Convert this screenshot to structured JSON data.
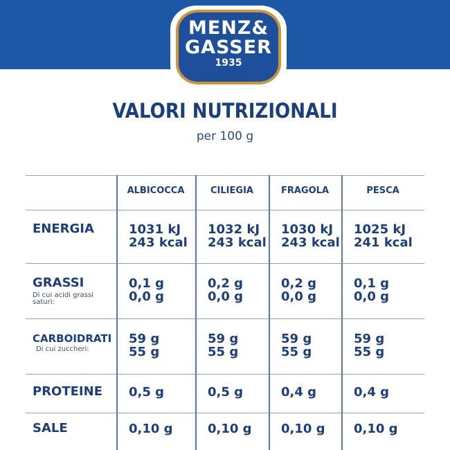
{
  "logo": {
    "line1": "MENZ&",
    "line2": "GASSER",
    "year": "1935"
  },
  "title": "VALORI NUTRIZIONALI",
  "subtitle": "per 100 g",
  "columns": [
    "ALBICOCCA",
    "CILIEGIA",
    "FRAGOLA",
    "PESCA"
  ],
  "rows": [
    {
      "label": "ENERGIA",
      "note": "",
      "values": [
        [
          "1031 kJ",
          "243 kcal"
        ],
        [
          "1032 kJ",
          "243 kcal"
        ],
        [
          "1030 kJ",
          "243 kcal"
        ],
        [
          "1025 kJ",
          "241 kcal"
        ]
      ]
    },
    {
      "label": "GRASSI",
      "note": "Di cui acidi grassi saturi:",
      "values": [
        [
          "0,1 g",
          "0,0 g"
        ],
        [
          "0,2 g",
          "0,0 g"
        ],
        [
          "0,2 g",
          "0,0 g"
        ],
        [
          "0,1 g",
          "0,0 g"
        ]
      ]
    },
    {
      "label": "CARBOIDRATI",
      "note": "Di cui zuccheri:",
      "values": [
        [
          "59 g",
          "55 g"
        ],
        [
          "59 g",
          "55 g"
        ],
        [
          "59 g",
          "55 g"
        ],
        [
          "59 g",
          "55 g"
        ]
      ]
    },
    {
      "label": "PROTEINE",
      "note": "",
      "values": [
        [
          "0,5 g"
        ],
        [
          "0,5 g"
        ],
        [
          "0,4 g"
        ],
        [
          "0,4 g"
        ]
      ]
    },
    {
      "label": "SALE",
      "note": "",
      "values": [
        [
          "0,10 g"
        ],
        [
          "0,10 g"
        ],
        [
          "0,10 g"
        ],
        [
          "0,10 g"
        ]
      ]
    }
  ],
  "colors": {
    "band": "#1c58a5",
    "text": "#1b3f7c",
    "gold": "#c9963c"
  }
}
